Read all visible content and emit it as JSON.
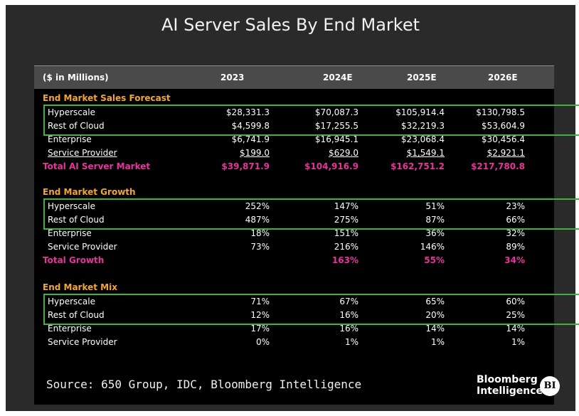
{
  "title": "AI Server Sales By End Market",
  "source": "Source: 650 Group, IDC, Bloomberg Intelligence",
  "logo": {
    "line1": "Bloomberg",
    "line2": "Intelligence",
    "badge": "BI"
  },
  "colors": {
    "section": "#f4a53a",
    "total": "#e8339c",
    "highlight_box": "#3db43d"
  },
  "chart_data": {
    "type": "table",
    "title": "AI Server Sales By End Market",
    "header_label": "($ in Millions)",
    "columns": [
      "2023",
      "2024E",
      "2025E",
      "2026E"
    ],
    "sections": [
      {
        "name": "End Market Sales Forecast",
        "rows": [
          {
            "label": "Hyperscale",
            "values": [
              "$28,331.3",
              "$70,087.3",
              "$105,914.4",
              "$130,798.5"
            ]
          },
          {
            "label": "Rest of Cloud",
            "values": [
              "$4,599.8",
              "$17,255.5",
              "$32,219.3",
              "$53,604.9"
            ]
          },
          {
            "label": "Enterprise",
            "values": [
              "$6,741.9",
              "$16,945.1",
              "$23,068.4",
              "$30,456.4"
            ]
          },
          {
            "label": "Service Provider",
            "values": [
              "$199.0",
              "$629.0",
              "$1,549.1",
              "$2,921.1"
            ]
          },
          {
            "label": "Total AI Server Market",
            "values": [
              "$39,871.9",
              "$104,916.9",
              "$162,751.2",
              "$217,780.8"
            ]
          }
        ]
      },
      {
        "name": "End Market Growth",
        "rows": [
          {
            "label": "Hyperscale",
            "values": [
              "252%",
              "147%",
              "51%",
              "23%"
            ]
          },
          {
            "label": "Rest of Cloud",
            "values": [
              "487%",
              "275%",
              "87%",
              "66%"
            ]
          },
          {
            "label": "Enterprise",
            "values": [
              "18%",
              "151%",
              "36%",
              "32%"
            ]
          },
          {
            "label": "Service Provider",
            "values": [
              "73%",
              "216%",
              "146%",
              "89%"
            ]
          },
          {
            "label": "Total Growth",
            "values": [
              "",
              "163%",
              "55%",
              "34%"
            ]
          }
        ]
      },
      {
        "name": "End Market Mix",
        "rows": [
          {
            "label": "Hyperscale",
            "values": [
              "71%",
              "67%",
              "65%",
              "60%"
            ]
          },
          {
            "label": "Rest of Cloud",
            "values": [
              "12%",
              "16%",
              "20%",
              "25%"
            ]
          },
          {
            "label": "Enterprise",
            "values": [
              "17%",
              "16%",
              "14%",
              "14%"
            ]
          },
          {
            "label": "Service Provider",
            "values": [
              "0%",
              "1%",
              "1%",
              "1%"
            ]
          }
        ]
      }
    ]
  }
}
